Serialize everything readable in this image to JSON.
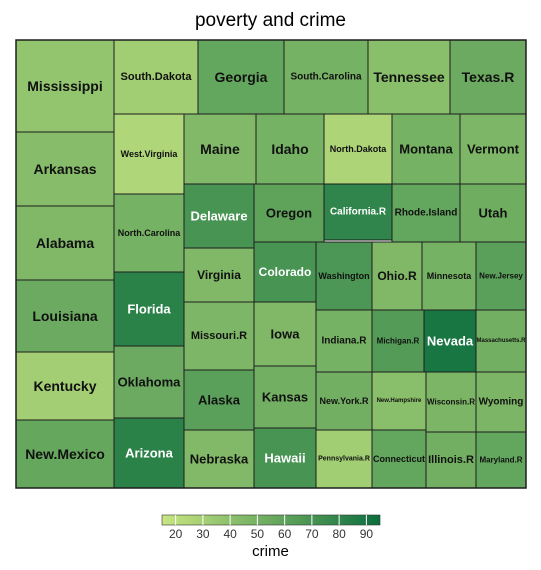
{
  "chart_data": {
    "type": "treemap",
    "title": "poverty and crime",
    "size_variable": "poverty",
    "color_variable": "crime",
    "color_scale": {
      "domain": [
        15,
        95
      ],
      "low_color": "#c9e681",
      "high_color": "#0c6e3e",
      "legend_title": "crime",
      "legend_ticks": [
        20,
        30,
        40,
        50,
        60,
        70,
        80,
        90
      ]
    },
    "cells": [
      {
        "label": "Mississippi",
        "crime": 38
      },
      {
        "label": "Arkansas",
        "crime": 43
      },
      {
        "label": "Alabama",
        "crime": 46
      },
      {
        "label": "Louisiana",
        "crime": 55
      },
      {
        "label": "Kentucky",
        "crime": 31
      },
      {
        "label": "New.Mexico",
        "crime": 57
      },
      {
        "label": "South.Dakota",
        "crime": 32
      },
      {
        "label": "Georgia",
        "crime": 58
      },
      {
        "label": "South.Carolina",
        "crime": 50
      },
      {
        "label": "Tennessee",
        "crime": 42
      },
      {
        "label": "Texas.R",
        "crime": 55
      },
      {
        "label": "West.Virginia",
        "crime": 26
      },
      {
        "label": "Maine",
        "crime": 45
      },
      {
        "label": "Idaho",
        "crime": 50
      },
      {
        "label": "North.Dakota",
        "crime": 27
      },
      {
        "label": "Montana",
        "crime": 50
      },
      {
        "label": "Vermont",
        "crime": 47
      },
      {
        "label": "North.Carolina",
        "crime": 50
      },
      {
        "label": "Delaware",
        "crime": 70
      },
      {
        "label": "Oregon",
        "crime": 60
      },
      {
        "label": "California.R",
        "crime": 80
      },
      {
        "label": "Rhode.Island",
        "crime": 58
      },
      {
        "label": "Utah",
        "crime": 53
      },
      {
        "label": "Florida",
        "crime": 82
      },
      {
        "label": "Virginia",
        "crime": 46
      },
      {
        "label": "Colorado",
        "crime": 70
      },
      {
        "label": "Washington",
        "crime": 68
      },
      {
        "label": "Ohio.R",
        "crime": 46
      },
      {
        "label": "Minnesota",
        "crime": 50
      },
      {
        "label": "New.Jersey",
        "crime": 62
      },
      {
        "label": "Missouri.R",
        "crime": 47
      },
      {
        "label": "Iowa",
        "crime": 46
      },
      {
        "label": "Indiana.R",
        "crime": 50
      },
      {
        "label": "Michigan.R",
        "crime": 65
      },
      {
        "label": "Nevada",
        "crime": 90
      },
      {
        "label": "Massachusetts.R",
        "crime": 52
      },
      {
        "label": "Oklahoma",
        "crime": 55
      },
      {
        "label": "Alaska",
        "crime": 62
      },
      {
        "label": "Kansas",
        "crime": 52
      },
      {
        "label": "New.York.R",
        "crime": 52
      },
      {
        "label": "New.Hampshire",
        "crime": 42
      },
      {
        "label": "Wisconsin.R",
        "crime": 48
      },
      {
        "label": "Wyoming",
        "crime": 48
      },
      {
        "label": "Arizona",
        "crime": 82
      },
      {
        "label": "Nebraska",
        "crime": 45
      },
      {
        "label": "Hawaii",
        "crime": 70
      },
      {
        "label": "Pennsylvania.R",
        "crime": 32
      },
      {
        "label": "Connecticut",
        "crime": 58
      },
      {
        "label": "Illinois.R",
        "crime": 52
      },
      {
        "label": "Maryland.R",
        "crime": 58
      }
    ]
  }
}
